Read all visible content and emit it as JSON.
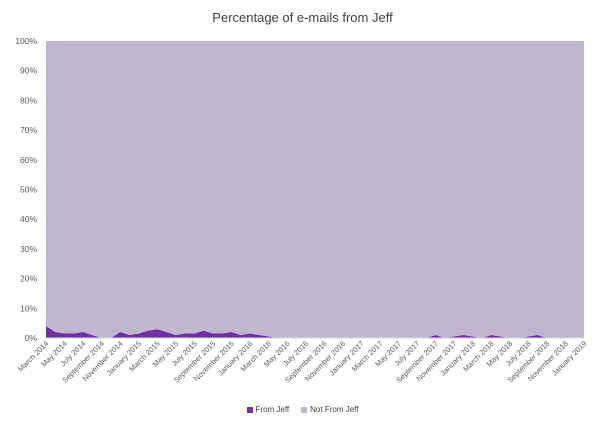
{
  "chart_data": {
    "type": "area",
    "stacked_percent": true,
    "title": "Percentage of e-mails  from Jeff",
    "xlabel": "",
    "ylabel": "",
    "ylim": [
      0,
      100
    ],
    "y_ticks": [
      "0%",
      "10%",
      "20%",
      "30%",
      "40%",
      "50%",
      "60%",
      "70%",
      "80%",
      "90%",
      "100%"
    ],
    "x_tick_labels": [
      "March 2014",
      "May 2014",
      "July 2014",
      "September 2014",
      "November 2014",
      "January 2015",
      "March 2015",
      "May 2015",
      "July 2015",
      "September 2015",
      "November 2015",
      "January 2016",
      "March 2016",
      "May 2016",
      "July 2016",
      "September 2016",
      "November 2016",
      "January 2017",
      "March 2017",
      "May 2017",
      "July 2017",
      "September 2017",
      "November 2017",
      "January 2018",
      "March 2018",
      "May 2018",
      "July 2018",
      "September 2018",
      "November 2018",
      "January 2019"
    ],
    "categories": [
      "2014-03",
      "2014-04",
      "2014-05",
      "2014-06",
      "2014-07",
      "2014-08",
      "2014-09",
      "2014-10",
      "2014-11",
      "2014-12",
      "2015-01",
      "2015-02",
      "2015-03",
      "2015-04",
      "2015-05",
      "2015-06",
      "2015-07",
      "2015-08",
      "2015-09",
      "2015-10",
      "2015-11",
      "2015-12",
      "2016-01",
      "2016-02",
      "2016-03",
      "2016-04",
      "2016-05",
      "2016-06",
      "2016-07",
      "2016-08",
      "2016-09",
      "2016-10",
      "2016-11",
      "2016-12",
      "2017-01",
      "2017-02",
      "2017-03",
      "2017-04",
      "2017-05",
      "2017-06",
      "2017-07",
      "2017-08",
      "2017-09",
      "2017-10",
      "2017-11",
      "2017-12",
      "2018-01",
      "2018-02",
      "2018-03",
      "2018-04",
      "2018-05",
      "2018-06",
      "2018-07",
      "2018-08",
      "2018-09",
      "2018-10",
      "2018-11",
      "2018-12",
      "2019-01"
    ],
    "series": [
      {
        "name": "From Jeff",
        "color": "#7030a0",
        "values": [
          4,
          2,
          1.5,
          1.5,
          2,
          1,
          0,
          0,
          2,
          1,
          1.5,
          2.5,
          3,
          2,
          1,
          1.5,
          1.5,
          2.5,
          1.5,
          1.5,
          2,
          1,
          1.5,
          1,
          0.5,
          0,
          0,
          0,
          0,
          0,
          0,
          0,
          0,
          0,
          0,
          0,
          0,
          0,
          0,
          0,
          0,
          0,
          1,
          0,
          0.5,
          1,
          0.5,
          0,
          1,
          0.5,
          0,
          0,
          0.5,
          1,
          0,
          0,
          0,
          0,
          0
        ]
      },
      {
        "name": "Not From Jeff",
        "color": "#c0b6d0",
        "values": [
          96,
          98,
          98.5,
          98.5,
          98,
          99,
          100,
          100,
          98,
          99,
          98.5,
          97.5,
          97,
          98,
          99,
          98.5,
          98.5,
          97.5,
          98.5,
          98.5,
          98,
          99,
          98.5,
          99,
          99.5,
          100,
          100,
          100,
          100,
          100,
          100,
          100,
          100,
          100,
          100,
          100,
          100,
          100,
          100,
          100,
          100,
          100,
          99,
          100,
          99.5,
          99,
          99.5,
          100,
          99,
          99.5,
          100,
          100,
          99.5,
          99,
          100,
          100,
          100,
          100,
          100
        ]
      }
    ],
    "grid": false,
    "legend_position": "bottom"
  }
}
